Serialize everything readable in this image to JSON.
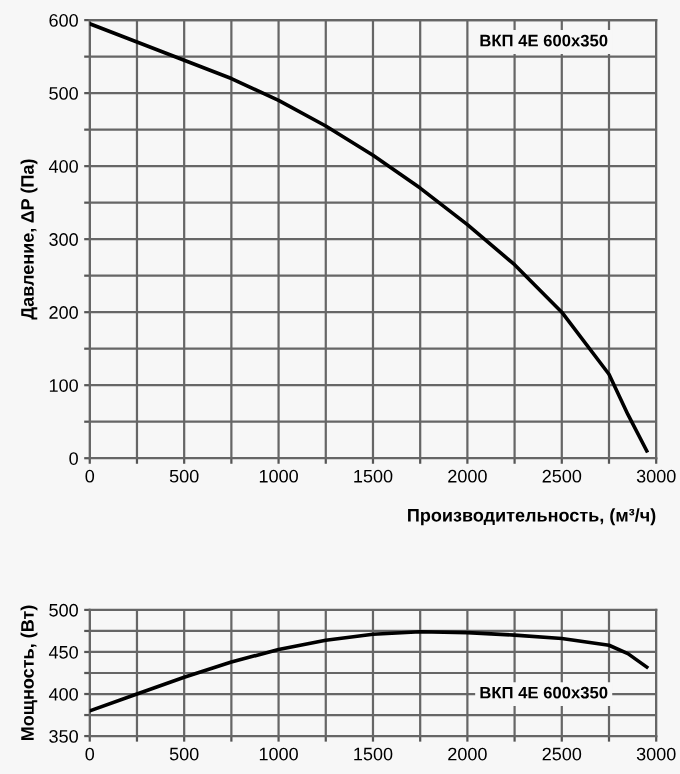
{
  "chart_data": [
    {
      "type": "line",
      "ylabel": "Давление, ΔP (Па)",
      "xlabel": "Производительность, (м³/ч)",
      "x": [
        0,
        250,
        500,
        750,
        1000,
        1250,
        1500,
        1750,
        2000,
        2250,
        2500,
        2750,
        2850,
        2950
      ],
      "series": [
        {
          "color": "#000000",
          "values": [
            595,
            570,
            545,
            520,
            490,
            455,
            415,
            370,
            320,
            265,
            200,
            115,
            60,
            10
          ]
        }
      ],
      "xlim": [
        0,
        3000
      ],
      "ylim": [
        0,
        600
      ],
      "xticks": [
        0,
        {
          "value": 250,
          "label": null
        },
        500,
        {
          "value": 750,
          "label": null
        },
        1000,
        {
          "value": 1250,
          "label": null
        },
        1500,
        {
          "value": 1750,
          "label": null
        },
        2000,
        {
          "value": 2250,
          "label": null
        },
        2500,
        {
          "value": 2750,
          "label": null
        },
        3000
      ],
      "yticks": [
        0,
        {
          "value": 50,
          "label": null
        },
        100,
        {
          "value": 150,
          "label": null
        },
        200,
        {
          "value": 250,
          "label": null
        },
        300,
        {
          "value": 350,
          "label": null
        },
        400,
        {
          "value": 450,
          "label": null
        },
        500,
        {
          "value": 550,
          "label": null
        },
        600
      ],
      "grid": true,
      "annotations": [
        "ВКП 4Е 600x350"
      ]
    },
    {
      "type": "line",
      "ylabel": "Мощность, (Вт)",
      "x": [
        0,
        250,
        500,
        750,
        1000,
        1250,
        1500,
        1750,
        2000,
        2250,
        2500,
        2750,
        2850,
        2950
      ],
      "series": [
        {
          "color": "#000000",
          "values": [
            380,
            400,
            420,
            438,
            453,
            464,
            471,
            474,
            473,
            470,
            466,
            458,
            448,
            432
          ]
        }
      ],
      "xlim": [
        0,
        3000
      ],
      "ylim": [
        350,
        500
      ],
      "xticks": [
        0,
        {
          "value": 250,
          "label": null
        },
        500,
        {
          "value": 750,
          "label": null
        },
        1000,
        {
          "value": 1250,
          "label": null
        },
        1500,
        {
          "value": 1750,
          "label": null
        },
        2000,
        {
          "value": 2250,
          "label": null
        },
        2500,
        {
          "value": 2750,
          "label": null
        },
        3000
      ],
      "yticks": [
        350,
        {
          "value": 375,
          "label": null
        },
        400,
        {
          "value": 425,
          "label": null
        },
        450,
        {
          "value": 475,
          "label": null
        },
        500
      ],
      "grid": true,
      "annotations": [
        "ВКП 4Е 600x350"
      ]
    }
  ]
}
